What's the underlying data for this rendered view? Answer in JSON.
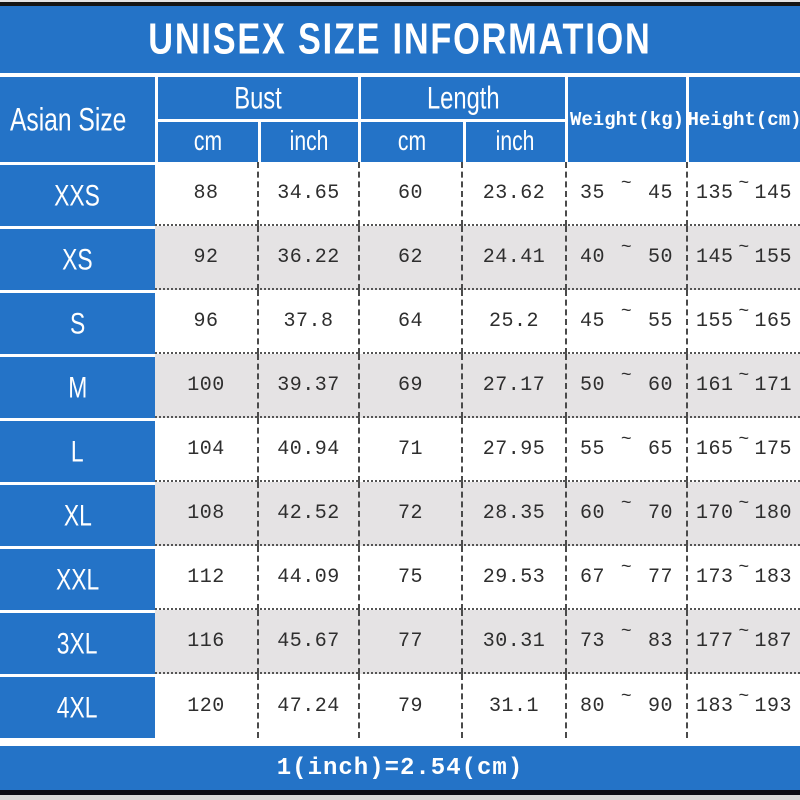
{
  "title": "UNISEX SIZE INFORMATION",
  "footer_note": "1(inch)=2.54(cm)",
  "tilde": "~",
  "colors": {
    "blue": "#2473C7",
    "alt_row": "#E5E3E4",
    "white_row": "#FFFFFF",
    "text": "#2E2E2E",
    "top_bar": "#141414"
  },
  "header": {
    "size_col": "Asian Size",
    "bust": "Bust",
    "length": "Length",
    "bust_cm": "cm",
    "bust_inch": "inch",
    "length_cm": "cm",
    "length_inch": "inch",
    "weight": "Weight(kg)",
    "height": "Height(cm)"
  },
  "rows": [
    {
      "size": "XXS",
      "bust_cm": "88",
      "bust_inch": "34.65",
      "length_cm": "60",
      "length_inch": "23.62",
      "weight_min": "35",
      "weight_max": "45",
      "height_min": "135",
      "height_max": "145"
    },
    {
      "size": "XS",
      "bust_cm": "92",
      "bust_inch": "36.22",
      "length_cm": "62",
      "length_inch": "24.41",
      "weight_min": "40",
      "weight_max": "50",
      "height_min": "145",
      "height_max": "155"
    },
    {
      "size": "S",
      "bust_cm": "96",
      "bust_inch": "37.8",
      "length_cm": "64",
      "length_inch": "25.2",
      "weight_min": "45",
      "weight_max": "55",
      "height_min": "155",
      "height_max": "165"
    },
    {
      "size": "M",
      "bust_cm": "100",
      "bust_inch": "39.37",
      "length_cm": "69",
      "length_inch": "27.17",
      "weight_min": "50",
      "weight_max": "60",
      "height_min": "161",
      "height_max": "171"
    },
    {
      "size": "L",
      "bust_cm": "104",
      "bust_inch": "40.94",
      "length_cm": "71",
      "length_inch": "27.95",
      "weight_min": "55",
      "weight_max": "65",
      "height_min": "165",
      "height_max": "175"
    },
    {
      "size": "XL",
      "bust_cm": "108",
      "bust_inch": "42.52",
      "length_cm": "72",
      "length_inch": "28.35",
      "weight_min": "60",
      "weight_max": "70",
      "height_min": "170",
      "height_max": "180"
    },
    {
      "size": "XXL",
      "bust_cm": "112",
      "bust_inch": "44.09",
      "length_cm": "75",
      "length_inch": "29.53",
      "weight_min": "67",
      "weight_max": "77",
      "height_min": "173",
      "height_max": "183"
    },
    {
      "size": "3XL",
      "bust_cm": "116",
      "bust_inch": "45.67",
      "length_cm": "77",
      "length_inch": "30.31",
      "weight_min": "73",
      "weight_max": "83",
      "height_min": "177",
      "height_max": "187"
    },
    {
      "size": "4XL",
      "bust_cm": "120",
      "bust_inch": "47.24",
      "length_cm": "79",
      "length_inch": "31.1",
      "weight_min": "80",
      "weight_max": "90",
      "height_min": "183",
      "height_max": "193"
    }
  ],
  "chart_data": {
    "type": "table",
    "title": "UNISEX SIZE INFORMATION",
    "columns": [
      "Asian Size",
      "Bust cm",
      "Bust inch",
      "Length cm",
      "Length inch",
      "Weight(kg)",
      "Height(cm)"
    ],
    "rows": [
      [
        "XXS",
        88,
        34.65,
        60,
        23.62,
        "35~45",
        "135~145"
      ],
      [
        "XS",
        92,
        36.22,
        62,
        24.41,
        "40~50",
        "145~155"
      ],
      [
        "S",
        96,
        37.8,
        64,
        25.2,
        "45~55",
        "155~165"
      ],
      [
        "M",
        100,
        39.37,
        69,
        27.17,
        "50~60",
        "161~171"
      ],
      [
        "L",
        104,
        40.94,
        71,
        27.95,
        "55~65",
        "165~175"
      ],
      [
        "XL",
        108,
        42.52,
        72,
        28.35,
        "60~70",
        "170~180"
      ],
      [
        "XXL",
        112,
        44.09,
        75,
        29.53,
        "67~77",
        "173~183"
      ],
      [
        "3XL",
        116,
        45.67,
        77,
        30.31,
        "73~83",
        "177~187"
      ],
      [
        "4XL",
        120,
        47.24,
        79,
        31.1,
        "80~90",
        "183~193"
      ]
    ],
    "note": "1(inch)=2.54(cm)"
  }
}
